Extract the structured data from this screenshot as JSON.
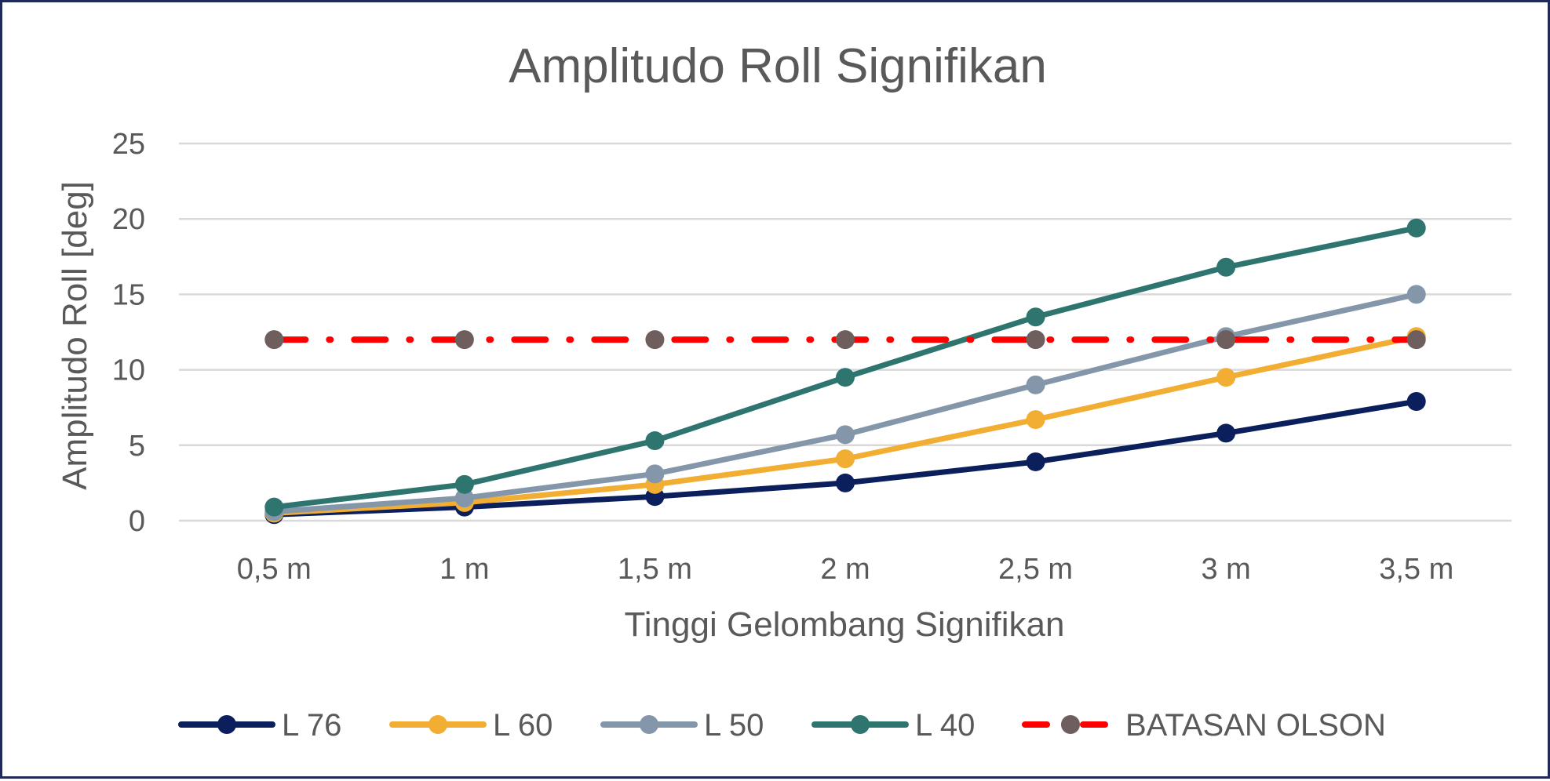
{
  "chart_data": {
    "type": "line",
    "title": "Amplitudo Roll Signifikan",
    "xlabel": "Tinggi Gelombang Signifikan",
    "ylabel": "Amplitudo Roll [deg]",
    "categories": [
      "0,5 m",
      "1 m",
      "1,5 m",
      "2 m",
      "2,5 m",
      "3 m",
      "3,5 m"
    ],
    "ylim": [
      0,
      25
    ],
    "yticks": [
      "0",
      "5",
      "10",
      "15",
      "20",
      "25"
    ],
    "grid": true,
    "legend_position": "bottom",
    "series": [
      {
        "name": "L 76",
        "color": "#0b1f5c",
        "marker_color": "#0b1f5c",
        "style": "solid",
        "values": [
          0.4,
          0.9,
          1.6,
          2.5,
          3.9,
          5.8,
          7.9
        ]
      },
      {
        "name": "L 60",
        "color": "#f2ad33",
        "marker_color": "#f2ad33",
        "style": "solid",
        "values": [
          0.5,
          1.2,
          2.4,
          4.1,
          6.7,
          9.5,
          12.2
        ]
      },
      {
        "name": "L 50",
        "color": "#8497aa",
        "marker_color": "#8497aa",
        "style": "solid",
        "values": [
          0.6,
          1.5,
          3.1,
          5.7,
          9.0,
          12.2,
          15.0
        ]
      },
      {
        "name": "L 40",
        "color": "#2e7570",
        "marker_color": "#2e7570",
        "style": "solid",
        "values": [
          0.9,
          2.4,
          5.3,
          9.5,
          13.5,
          16.8,
          19.4
        ]
      },
      {
        "name": "BATASAN OLSON",
        "color": "#ff0000",
        "marker_color": "#6e5e5e",
        "style": "dash-dot",
        "values": [
          12,
          12,
          12,
          12,
          12,
          12,
          12
        ]
      }
    ]
  }
}
